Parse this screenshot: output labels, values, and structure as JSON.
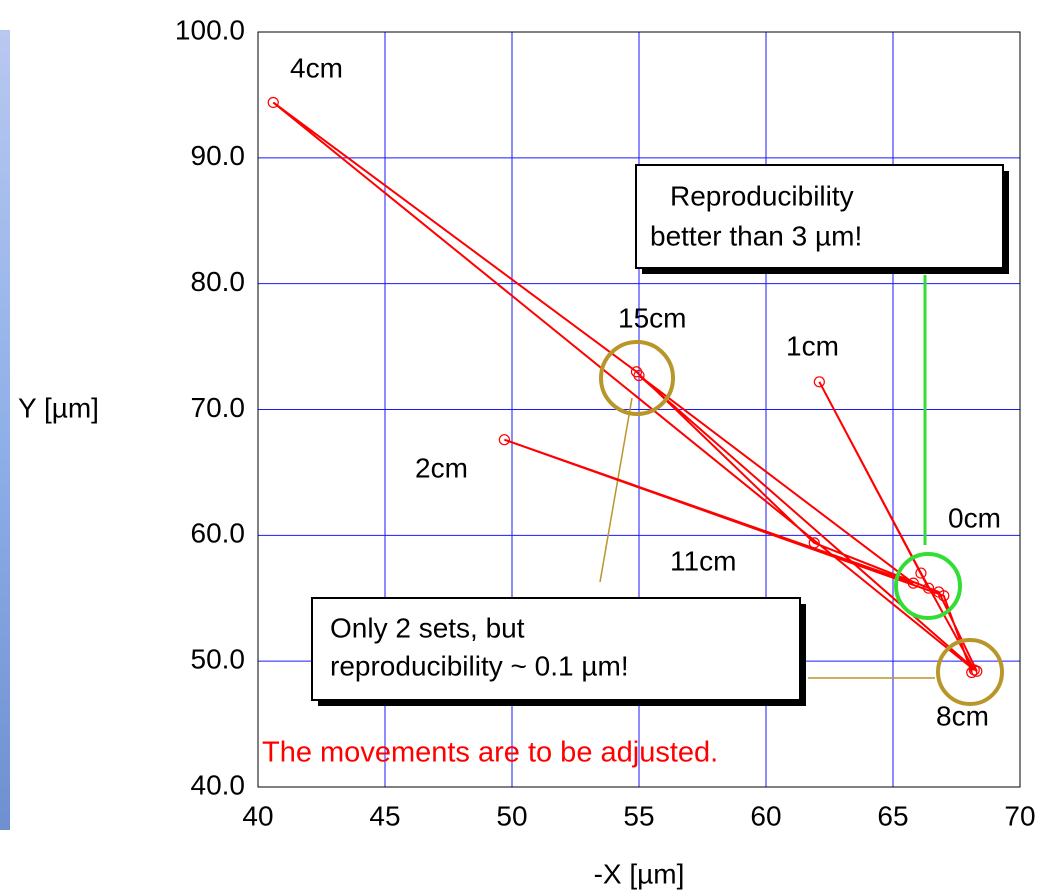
{
  "chart_data": {
    "type": "line",
    "xlabel": "-X [µm]",
    "ylabel": "Y [µm]",
    "xlim": [
      40,
      70
    ],
    "ylim": [
      40,
      100
    ],
    "xticks": [
      40,
      45,
      50,
      55,
      60,
      65,
      70
    ],
    "yticks": [
      {
        "value": 40,
        "label": "40.0"
      },
      {
        "value": 50,
        "label": "50.0"
      },
      {
        "value": 60,
        "label": "60.0"
      },
      {
        "value": 70,
        "label": "70.0"
      },
      {
        "value": 80,
        "label": "80.0"
      },
      {
        "value": 90,
        "label": "90.0"
      },
      {
        "value": 100,
        "label": "100.0"
      }
    ],
    "grid": true,
    "series": [
      {
        "color": "#ff0000",
        "x": [
          66.4,
          62.1,
          66.1,
          68.2,
          40.6,
          54.9,
          61.9,
          66.8,
          68.3,
          55.0,
          65.8,
          49.7,
          67.0,
          68.1
        ],
        "values": [
          55.8,
          72.2,
          57.0,
          49.3,
          94.4,
          73.0,
          59.4,
          55.5,
          49.2,
          72.7,
          56.2,
          67.6,
          55.2,
          49.1
        ]
      }
    ],
    "annotations": [
      "4cm",
      "15cm",
      "1cm",
      "2cm",
      "11cm",
      "0cm",
      "8cm"
    ],
    "callouts": [
      [
        "Reproducibility",
        "better than 3 µm!"
      ],
      [
        "Only 2 sets, but",
        "reproducibility ~ 0.1 µm!"
      ]
    ],
    "note": "The movements are to be adjusted."
  }
}
